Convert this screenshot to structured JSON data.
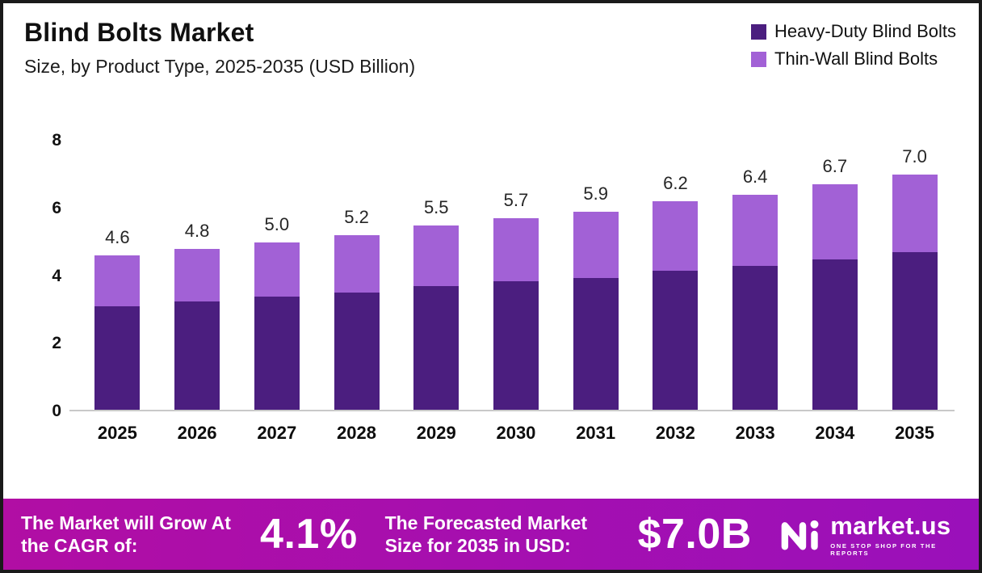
{
  "header": {
    "title": "Blind Bolts Market",
    "subtitle": "Size, by Product Type, 2025-2035 (USD Billion)"
  },
  "legend": [
    {
      "label": "Heavy-Duty Blind Bolts",
      "color": "#4b1e7f"
    },
    {
      "label": "Thin-Wall Blind Bolts",
      "color": "#a261d6"
    }
  ],
  "chart_data": {
    "type": "bar",
    "stacked": true,
    "title": "Blind Bolts Market",
    "subtitle": "Size, by Product Type, 2025-2035 (USD Billion)",
    "xlabel": "",
    "ylabel": "",
    "unit": "USD Billion",
    "categories": [
      "2025",
      "2026",
      "2027",
      "2028",
      "2029",
      "2030",
      "2031",
      "2032",
      "2033",
      "2034",
      "2035"
    ],
    "series": [
      {
        "name": "Heavy-Duty Blind Bolts",
        "color": "#4b1e7f",
        "values": [
          3.1,
          3.25,
          3.4,
          3.5,
          3.7,
          3.85,
          3.95,
          4.15,
          4.3,
          4.5,
          4.7
        ]
      },
      {
        "name": "Thin-Wall Blind Bolts",
        "color": "#a261d6",
        "values": [
          1.5,
          1.55,
          1.6,
          1.7,
          1.8,
          1.85,
          1.95,
          2.05,
          2.1,
          2.2,
          2.3
        ]
      }
    ],
    "totals": [
      4.6,
      4.8,
      5.0,
      5.2,
      5.5,
      5.7,
      5.9,
      6.2,
      6.4,
      6.7,
      7.0
    ],
    "total_labels": [
      "4.6",
      "4.8",
      "5.0",
      "5.2",
      "5.5",
      "5.7",
      "5.9",
      "6.2",
      "6.4",
      "6.7",
      "7.0"
    ],
    "ylim": [
      0,
      8
    ],
    "yticks": [
      0,
      2,
      4,
      6,
      8
    ],
    "grid": false,
    "legend_position": "top-right"
  },
  "footer": {
    "cagr_label": "The Market will Grow At the CAGR of:",
    "cagr_value": "4.1%",
    "forecast_label": "The Forecasted Market Size for 2035 in USD:",
    "forecast_value": "$7.0B",
    "brand": "market.us",
    "brand_tagline": "ONE STOP SHOP FOR THE REPORTS",
    "background_start": "#b10ea4",
    "background_end": "#9a10ba"
  }
}
